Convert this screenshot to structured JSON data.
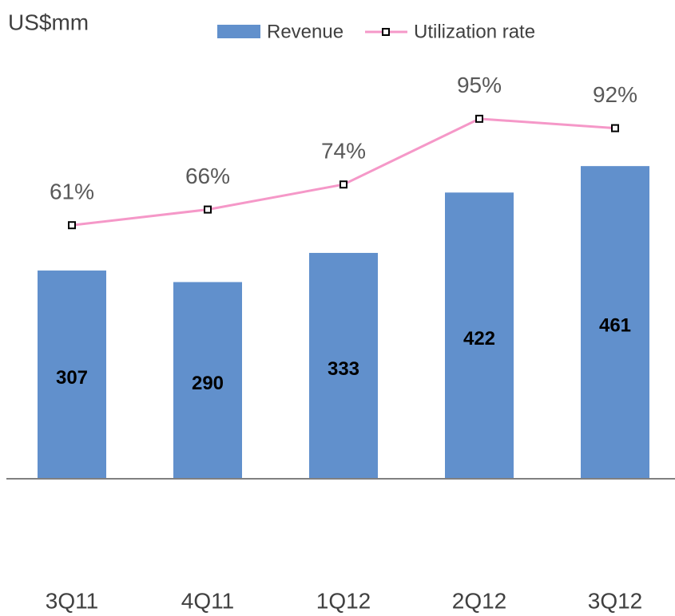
{
  "chart_data": {
    "type": "bar",
    "title": "US$mm",
    "categories": [
      "3Q11",
      "4Q11",
      "1Q12",
      "2Q12",
      "3Q12"
    ],
    "ylim": [
      0,
      600
    ],
    "y2lim": [
      -20,
      110
    ],
    "legend": "top",
    "series": [
      {
        "name": "Revenue",
        "type": "bar",
        "color": "#6190cc",
        "values": [
          307,
          290,
          333,
          422,
          461
        ]
      },
      {
        "name": "Utilization rate",
        "type": "line",
        "axis": "y2",
        "color": "#f598c8",
        "values": [
          61,
          66,
          74,
          95,
          92
        ],
        "value_labels": [
          "61%",
          "66%",
          "74%",
          "95%",
          "92%"
        ]
      }
    ]
  }
}
